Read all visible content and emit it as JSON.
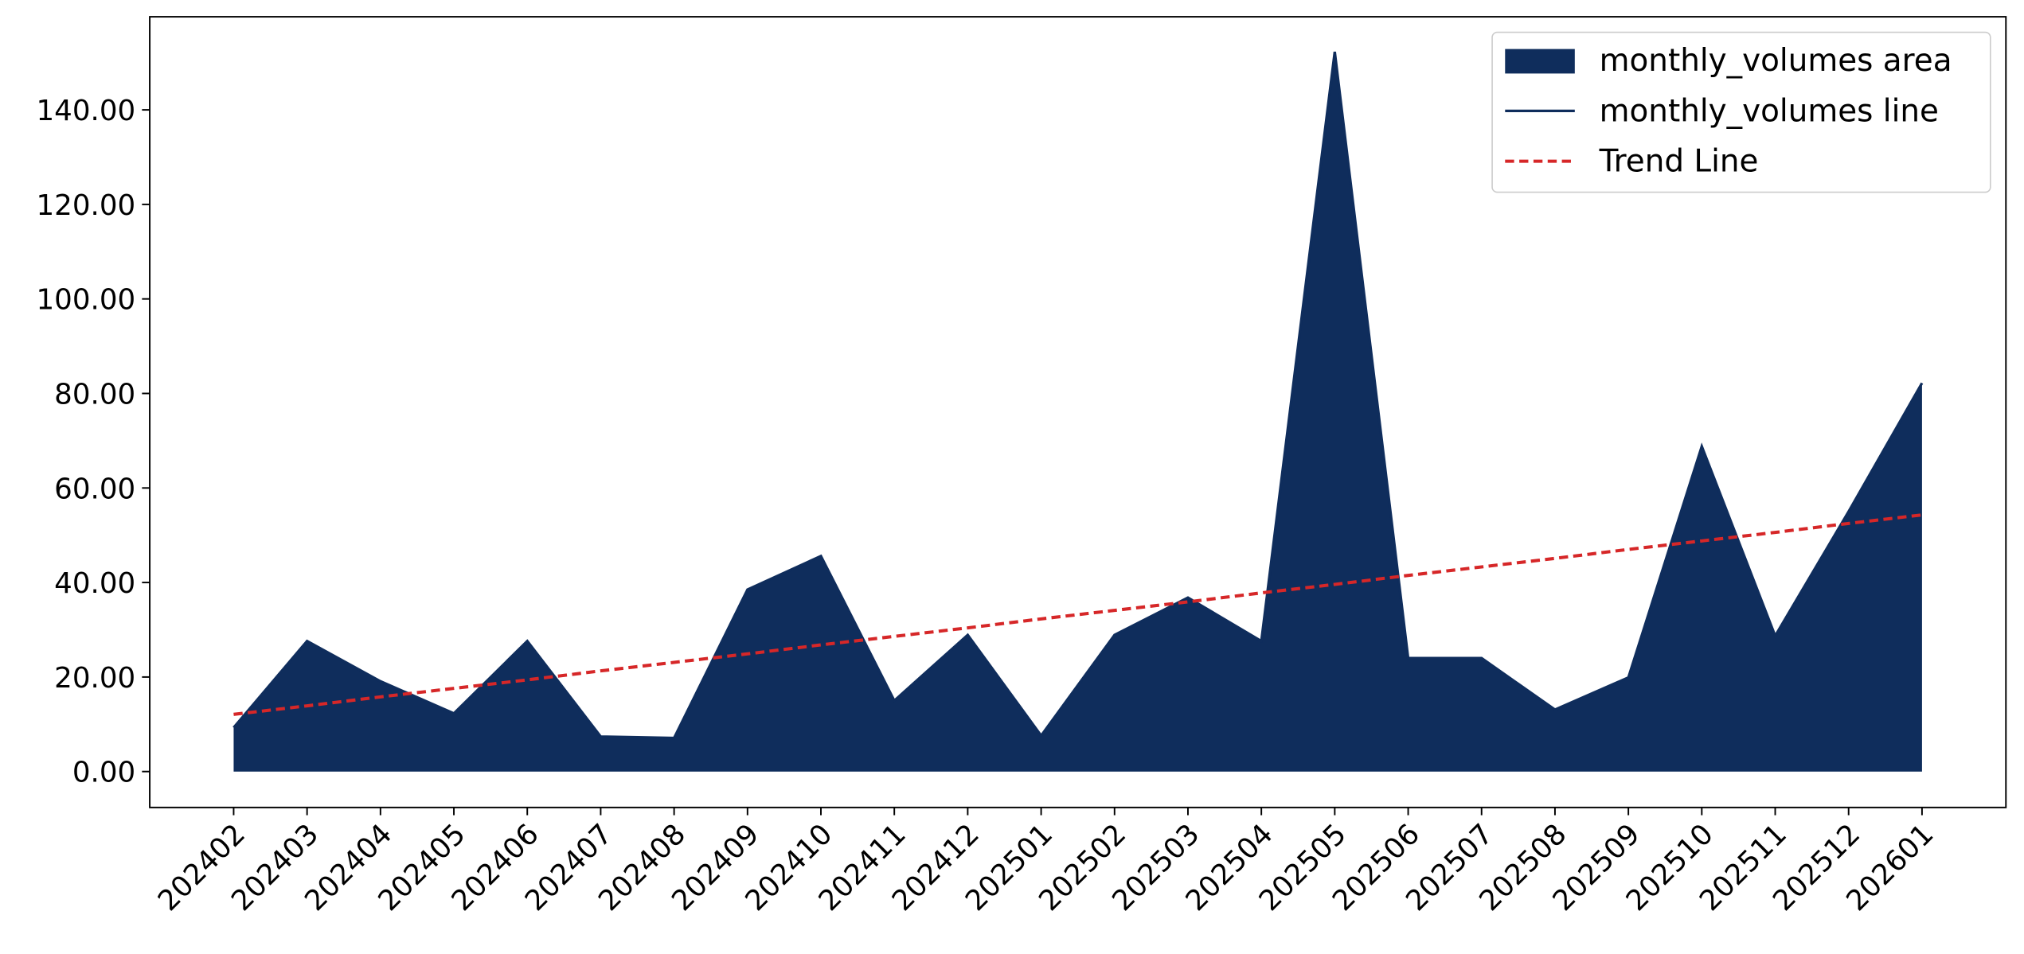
{
  "chart_data": {
    "type": "area",
    "categories": [
      "202402",
      "202403",
      "202404",
      "202405",
      "202406",
      "202407",
      "202408",
      "202409",
      "202410",
      "202411",
      "202412",
      "202501",
      "202502",
      "202503",
      "202504",
      "202505",
      "202506",
      "202507",
      "202508",
      "202509",
      "202510",
      "202511",
      "202512",
      "202601"
    ],
    "series": [
      {
        "name": "monthly_volumes area",
        "color": "#0f2d5c",
        "kind": "area",
        "values": [
          9.3,
          27.6,
          19.1,
          12.3,
          27.6,
          7.4,
          7.1,
          38.5,
          45.6,
          15.0,
          28.9,
          7.6,
          28.9,
          36.8,
          27.6,
          152.3,
          24.0,
          24.0,
          13.1,
          19.9,
          68.8,
          28.7,
          55.0,
          82.2
        ]
      },
      {
        "name": "monthly_volumes line",
        "color": "#0f2d5c",
        "kind": "line",
        "values": [
          9.3,
          27.6,
          19.1,
          12.3,
          27.6,
          7.4,
          7.1,
          38.5,
          45.6,
          15.0,
          28.9,
          7.6,
          28.9,
          36.8,
          27.6,
          152.3,
          24.0,
          24.0,
          13.1,
          19.9,
          68.8,
          28.7,
          55.0,
          82.2
        ]
      },
      {
        "name": "Trend Line",
        "color": "#d62728",
        "kind": "dashed",
        "values": [
          12.1,
          13.9,
          15.8,
          17.6,
          19.4,
          21.3,
          23.1,
          24.9,
          26.8,
          28.6,
          30.4,
          32.3,
          34.1,
          35.9,
          37.8,
          39.6,
          41.5,
          43.3,
          45.1,
          47.0,
          48.8,
          50.6,
          52.5,
          54.3
        ]
      }
    ],
    "ylim": [
      -7.6,
      159.7
    ],
    "yticks": [
      {
        "value": 0,
        "label": "0.00"
      },
      {
        "value": 20,
        "label": "20.00"
      },
      {
        "value": 40,
        "label": "40.00"
      },
      {
        "value": 60,
        "label": "60.00"
      },
      {
        "value": 80,
        "label": "80.00"
      },
      {
        "value": 100,
        "label": "100.00"
      },
      {
        "value": 120,
        "label": "120.00"
      },
      {
        "value": 140,
        "label": "140.00"
      }
    ],
    "grid": false,
    "legend": "upper right"
  }
}
